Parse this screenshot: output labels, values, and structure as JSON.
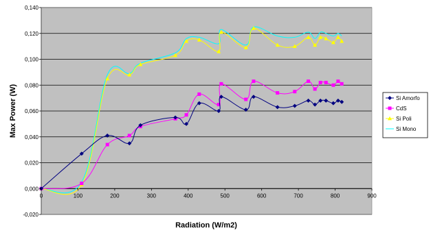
{
  "chart_data": {
    "type": "line",
    "xlabel": "Radiation (W/m2)",
    "ylabel": "Max Power (W)",
    "xlim": [
      0,
      900
    ],
    "ylim": [
      -0.02,
      0.14
    ],
    "x_ticks": [
      "0",
      "100",
      "200",
      "300",
      "400",
      "500",
      "600",
      "700",
      "800",
      "900"
    ],
    "y_ticks": [
      "-0,020",
      "0,000",
      "0,020",
      "0,040",
      "0,060",
      "0,080",
      "0,100",
      "0,120",
      "0,140"
    ],
    "grid": true,
    "legend_position": "right",
    "plot_background": "#c0c0c0",
    "series": [
      {
        "name": "Si Amorfo",
        "color": "#000080",
        "marker": "diamond",
        "x": [
          0,
          110,
          180,
          240,
          270,
          365,
          395,
          430,
          483,
          490,
          557,
          578,
          643,
          690,
          727,
          745,
          760,
          775,
          795,
          808,
          818
        ],
        "y": [
          0.0,
          0.027,
          0.041,
          0.035,
          0.049,
          0.055,
          0.05,
          0.066,
          0.06,
          0.071,
          0.061,
          0.071,
          0.063,
          0.064,
          0.068,
          0.065,
          0.068,
          0.068,
          0.066,
          0.068,
          0.067
        ]
      },
      {
        "name": "CdS",
        "color": "#ff00ff",
        "marker": "square",
        "x": [
          0,
          110,
          180,
          240,
          270,
          365,
          395,
          430,
          483,
          490,
          557,
          578,
          643,
          690,
          727,
          745,
          760,
          775,
          795,
          808,
          818
        ],
        "y": [
          0.0,
          0.004,
          0.034,
          0.041,
          0.048,
          0.054,
          0.057,
          0.073,
          0.065,
          0.081,
          0.069,
          0.083,
          0.074,
          0.075,
          0.083,
          0.077,
          0.082,
          0.082,
          0.08,
          0.083,
          0.081
        ]
      },
      {
        "name": "Si Poli",
        "color": "#ffff00",
        "marker": "triangle",
        "x": [
          0,
          110,
          180,
          240,
          270,
          365,
          395,
          430,
          483,
          490,
          557,
          578,
          643,
          690,
          727,
          745,
          760,
          775,
          795,
          808,
          818
        ],
        "y": [
          0.0,
          0.003,
          0.085,
          0.088,
          0.096,
          0.103,
          0.114,
          0.115,
          0.106,
          0.121,
          0.109,
          0.124,
          0.111,
          0.11,
          0.117,
          0.111,
          0.117,
          0.116,
          0.113,
          0.117,
          0.114
        ]
      },
      {
        "name": "Si Mono",
        "color": "#00ffff",
        "marker": "none",
        "x": [
          0,
          110,
          180,
          240,
          270,
          365,
          395,
          430,
          483,
          490,
          557,
          578,
          643,
          690,
          727,
          745,
          760,
          775,
          795,
          808,
          818
        ],
        "y": [
          0.0,
          0.005,
          0.088,
          0.089,
          0.097,
          0.105,
          0.116,
          0.117,
          0.112,
          0.123,
          0.111,
          0.125,
          0.118,
          0.117,
          0.121,
          0.116,
          0.121,
          0.12,
          0.118,
          0.12,
          0.118
        ]
      }
    ]
  }
}
